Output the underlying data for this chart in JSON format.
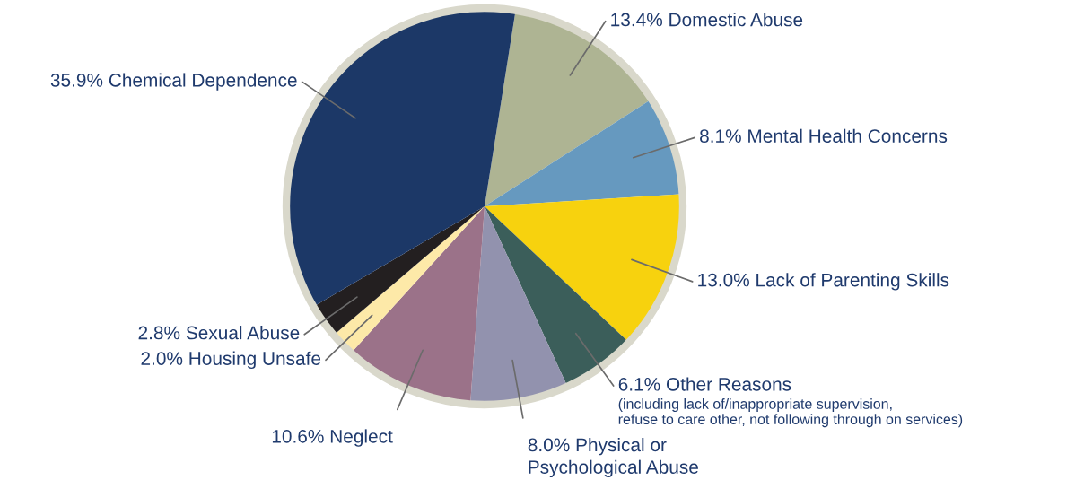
{
  "chart_data": {
    "type": "pie",
    "categories": [
      "Domestic Abuse",
      "Mental Health Concerns",
      "Lack of Parenting Skills",
      "Other Reasons",
      "Physical or\nPsychological Abuse",
      "Neglect",
      "Housing Unsafe",
      "Sexual Abuse",
      "Chemical Dependence"
    ],
    "values": [
      13.4,
      8.1,
      13.0,
      6.1,
      8.0,
      10.6,
      2.0,
      2.8,
      35.9
    ],
    "value_labels": [
      "13.4%",
      "8.1%",
      "13.0%",
      "6.1%",
      "8.0%",
      "10.6%",
      "2.0%",
      "2.8%",
      "35.9%"
    ],
    "colors": [
      "#aeb493",
      "#6699bf",
      "#f7d20e",
      "#3b5e5a",
      "#9292ae",
      "#9b7289",
      "#fde9a8",
      "#231f20",
      "#1c3867"
    ],
    "annotations": [
      "(including lack of/inappropriate supervision,\nrefuse to care other, not following through on services)"
    ],
    "legend": false
  }
}
